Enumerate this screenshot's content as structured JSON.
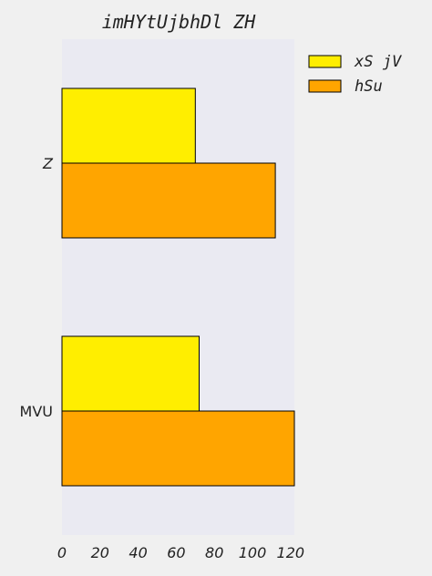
{
  "chart_data": {
    "type": "bar",
    "orientation": "horizontal",
    "title": "imHYtUjbhDl ZH",
    "xlabel": "",
    "ylabel": "",
    "categories": [
      "Z",
      "MVU"
    ],
    "series": [
      {
        "name": "xS jV",
        "values": [
          70,
          72
        ],
        "color": "#ffee00"
      },
      {
        "name": "hSu",
        "values": [
          112,
          122
        ],
        "color": "#ffa500"
      }
    ],
    "xlim": [
      0,
      122
    ],
    "xticks": [
      0,
      20,
      40,
      60,
      80,
      100,
      120
    ],
    "grid": false,
    "legend": "outside-top-right",
    "colors": {
      "plot_background": "#eaeaf2",
      "page_background": "#f0f0f0",
      "bar_edge": "#000000",
      "text": "#222222"
    }
  }
}
